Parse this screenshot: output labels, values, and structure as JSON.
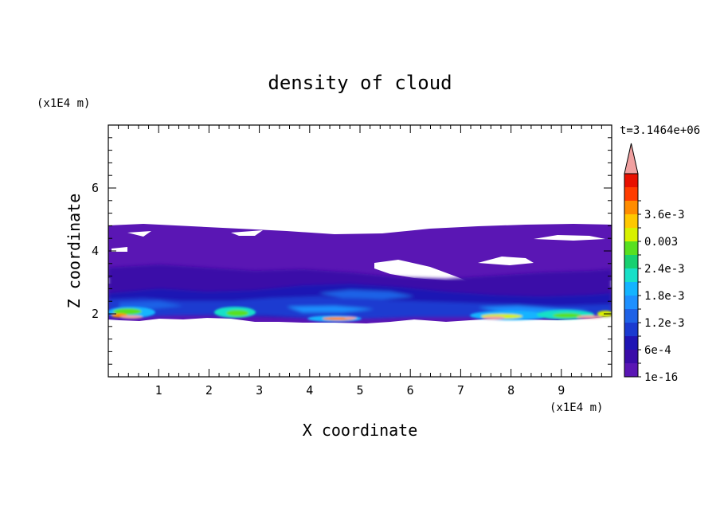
{
  "chart_data": {
    "type": "heatmap",
    "title": "density of cloud",
    "xlabel": "X coordinate",
    "ylabel": "Z coordinate",
    "x_unit": "(x1E4 m)",
    "y_unit": "(x1E4 m)",
    "time_label": "t=3.1464e+06",
    "xlim": [
      0,
      10
    ],
    "ylim": [
      0,
      8
    ],
    "x_ticks": [
      "1",
      "2",
      "3",
      "4",
      "5",
      "6",
      "7",
      "8",
      "9"
    ],
    "y_ticks": [
      "2",
      "4",
      "6"
    ],
    "colorbar": {
      "levels": [
        "1e-16",
        "",
        "6e-4",
        "",
        "1.2e-3",
        "",
        "1.8e-3",
        "",
        "2.4e-3",
        "",
        "0.003",
        "",
        "3.6e-3",
        ""
      ],
      "colors": [
        "#5a16b4",
        "#3a0ca8",
        "#1f14b4",
        "#1a3ad0",
        "#1e62e6",
        "#1e90ff",
        "#14b4ff",
        "#18e0c8",
        "#18d070",
        "#58e020",
        "#d8f000",
        "#ffc800",
        "#ff8c00",
        "#ff3c00",
        "#e81000"
      ],
      "extend_color": "#f0a0a0"
    },
    "cloud": {
      "outer_band_z": [
        1.9,
        4.8
      ],
      "core_band_z": [
        1.8,
        3.2
      ],
      "peak_regions": [
        {
          "x": [
            0.1,
            0.9
          ],
          "z": [
            1.85,
            2.1
          ]
        },
        {
          "x": [
            2.2,
            2.9
          ],
          "z": [
            1.9,
            2.1
          ]
        },
        {
          "x": [
            4.0,
            4.9
          ],
          "z": [
            1.75,
            1.95
          ]
        },
        {
          "x": [
            7.3,
            9.8
          ],
          "z": [
            1.8,
            2.0
          ]
        }
      ]
    }
  }
}
